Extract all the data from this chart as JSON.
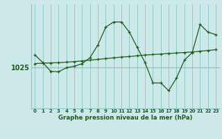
{
  "title": "Graphe pression niveau de la mer (hPa)",
  "background_color": "#cce8e8",
  "plot_bg_color": "#cce8e8",
  "grid_color": "#88c4c4",
  "line_color": "#1a5c1a",
  "x_ticks": [
    0,
    1,
    2,
    3,
    4,
    5,
    6,
    7,
    8,
    9,
    10,
    11,
    12,
    13,
    14,
    15,
    16,
    17,
    18,
    19,
    20,
    21,
    22,
    23
  ],
  "curve1_y": [
    1027.5,
    1026.0,
    1024.3,
    1024.2,
    1025.0,
    1025.3,
    1025.8,
    1027.0,
    1029.5,
    1033.0,
    1034.0,
    1034.0,
    1032.0,
    1029.0,
    1026.0,
    1022.0,
    1022.0,
    1020.5,
    1023.0,
    1026.5,
    1028.0,
    1033.5,
    1032.0,
    1031.5
  ],
  "curve2_y": [
    1025.8,
    1025.9,
    1025.95,
    1026.0,
    1026.1,
    1026.2,
    1026.35,
    1026.5,
    1026.65,
    1026.8,
    1026.95,
    1027.1,
    1027.2,
    1027.35,
    1027.5,
    1027.6,
    1027.7,
    1027.8,
    1027.9,
    1028.0,
    1028.1,
    1028.25,
    1028.4,
    1028.55
  ],
  "ylim_min": 1017.0,
  "ylim_max": 1037.5,
  "ytick_val": 1025
}
